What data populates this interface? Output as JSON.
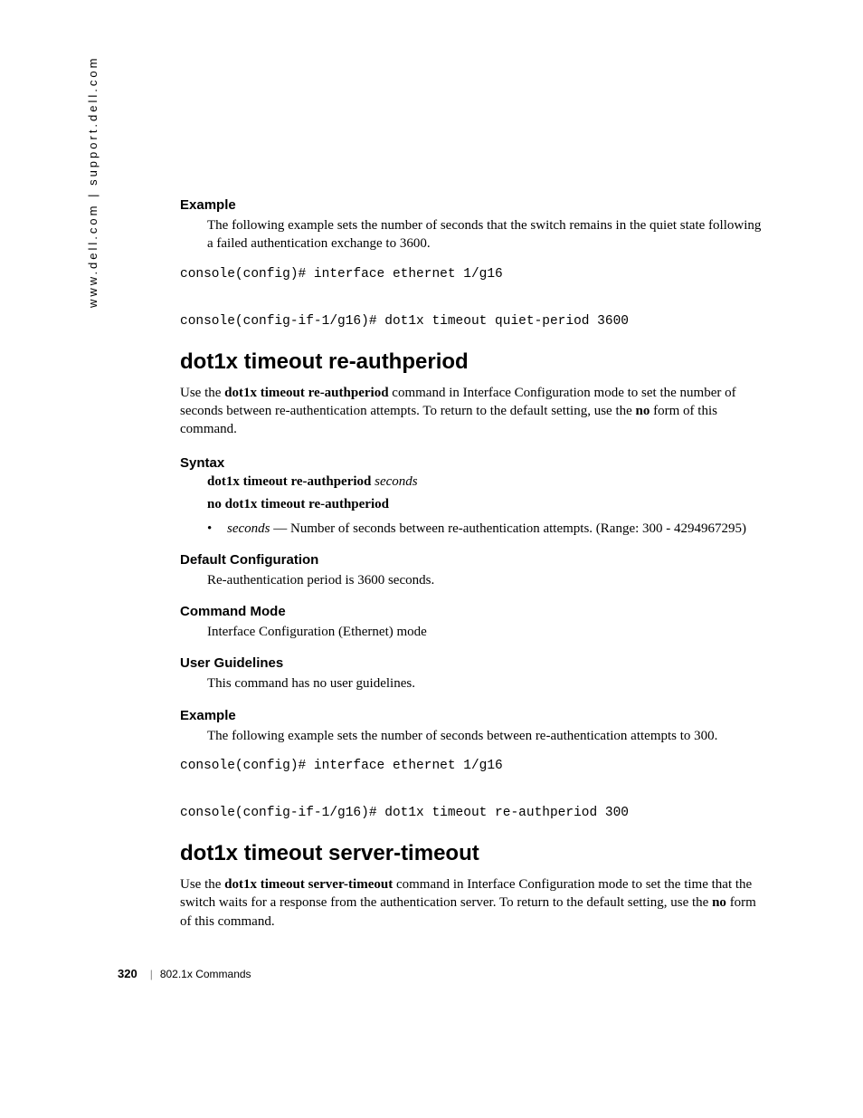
{
  "side_url": "www.dell.com | support.dell.com",
  "sec1": {
    "heading": "Example",
    "body": "The following example sets the number of seconds that the switch remains in the quiet state following a failed authentication exchange to 3600.",
    "code": "console(config)# interface ethernet 1/g16\n\nconsole(config-if-1/g16)# dot1x timeout quiet-period 3600"
  },
  "cmd1": {
    "title": "dot1x timeout re-authperiod",
    "intro_pre": "Use the ",
    "intro_bold": "dot1x timeout re-authperiod",
    "intro_mid": " command in Interface Configuration mode to set the number of seconds between re-authentication attempts. To return to the default setting, use the ",
    "intro_bold2": "no",
    "intro_post": " form of this command.",
    "syntax_heading": "Syntax",
    "syntax_line1_bold": "dot1x timeout re-authperiod",
    "syntax_line1_italic": " seconds",
    "syntax_line2_bold": "no dot1x timeout re-authperiod",
    "bullet_italic": "seconds",
    "bullet_text": " — Number of seconds between re-authentication attempts. (Range: 300 - 4294967295)",
    "default_heading": "Default Configuration",
    "default_body": "Re-authentication period is 3600 seconds.",
    "mode_heading": "Command Mode",
    "mode_body": "Interface Configuration (Ethernet) mode",
    "guidelines_heading": "User Guidelines",
    "guidelines_body": "This command has no user guidelines.",
    "example_heading": "Example",
    "example_body": "The following example sets the number of seconds between re-authentication attempts to 300.",
    "example_code": "console(config)# interface ethernet 1/g16\n\nconsole(config-if-1/g16)# dot1x timeout re-authperiod 300"
  },
  "cmd2": {
    "title": "dot1x timeout server-timeout",
    "intro_pre": "Use the ",
    "intro_bold": "dot1x timeout server-timeout",
    "intro_mid": " command in Interface Configuration mode to set the time that the switch waits for a response from the authentication server. To return to the default setting, use the ",
    "intro_bold2": "no",
    "intro_post": " form of this command."
  },
  "footer": {
    "page": "320",
    "section": "802.1x Commands"
  }
}
